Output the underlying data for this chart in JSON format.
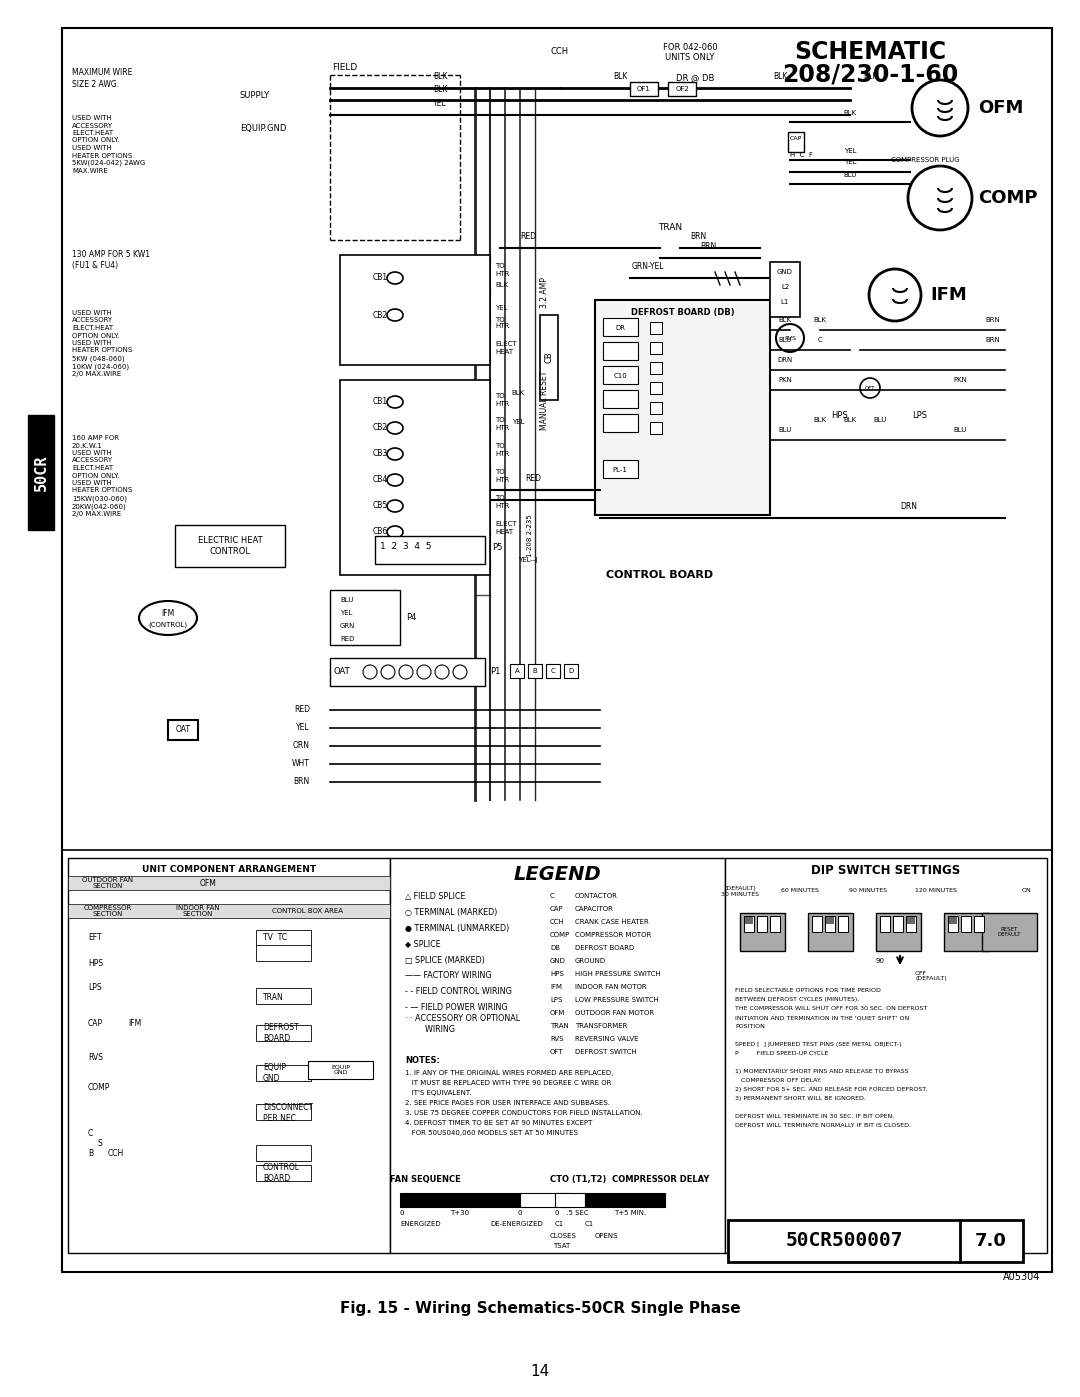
{
  "page_background": "#ffffff",
  "border_color": "#000000",
  "fig_width": 10.8,
  "fig_height": 13.97,
  "dpi": 100,
  "main_title": "Fig. 15 - Wiring Schematics-50CR Single Phase",
  "page_number": "14",
  "schematic_title_line1": "SCHEMATIC",
  "schematic_title_line2": "208/230-1-60",
  "label_50CR": "50CR",
  "doc_number": "50CR500007",
  "doc_version": "7.0",
  "doc_code": "A05304",
  "legend_title": "LEGEND",
  "dip_title": "DIP SWITCH SETTINGS",
  "unit_comp_title": "UNIT COMPONENT ARRANGEMENT",
  "text_color": "#000000",
  "light_gray": "#cccccc",
  "dark_gray": "#555555"
}
